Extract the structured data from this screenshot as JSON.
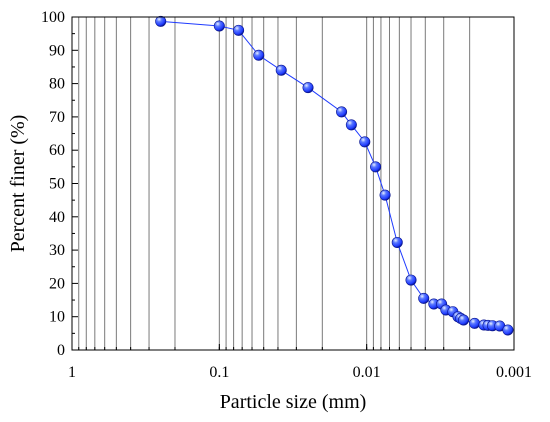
{
  "chart_data": {
    "type": "scatter",
    "xlabel": "Particle size (mm)",
    "ylabel": "Percent finer (%)",
    "x_scale": "log",
    "x_reversed": true,
    "xlim": [
      1,
      0.001
    ],
    "ylim": [
      0,
      100
    ],
    "x_ticks": [
      1,
      0.1,
      0.01,
      0.001
    ],
    "x_tick_labels": [
      "1",
      "0.1",
      "0.01",
      "0.001"
    ],
    "y_ticks": [
      0,
      10,
      20,
      30,
      40,
      50,
      60,
      70,
      80,
      90,
      100
    ],
    "grid": "vertical",
    "legend": "none",
    "series": [
      {
        "color": "#1f3bff",
        "marker": "sphere",
        "x": [
          0.25,
          0.1,
          0.074,
          0.054,
          0.038,
          0.025,
          0.0148,
          0.0127,
          0.0103,
          0.0087,
          0.0075,
          0.0062,
          0.005,
          0.0041,
          0.0035,
          0.0031,
          0.0029,
          0.0026,
          0.0024,
          0.0023,
          0.0022,
          0.00185,
          0.0016,
          0.0015,
          0.0014,
          0.00125,
          0.0011
        ],
        "y": [
          98.7,
          97.3,
          96,
          88.5,
          84,
          78.8,
          71.5,
          67.6,
          62.5,
          55,
          46.5,
          32.3,
          21,
          15.5,
          13.8,
          13.8,
          12,
          11.5,
          10,
          9.5,
          9,
          8,
          7.5,
          7.4,
          7.3,
          7.2,
          6
        ]
      }
    ]
  }
}
